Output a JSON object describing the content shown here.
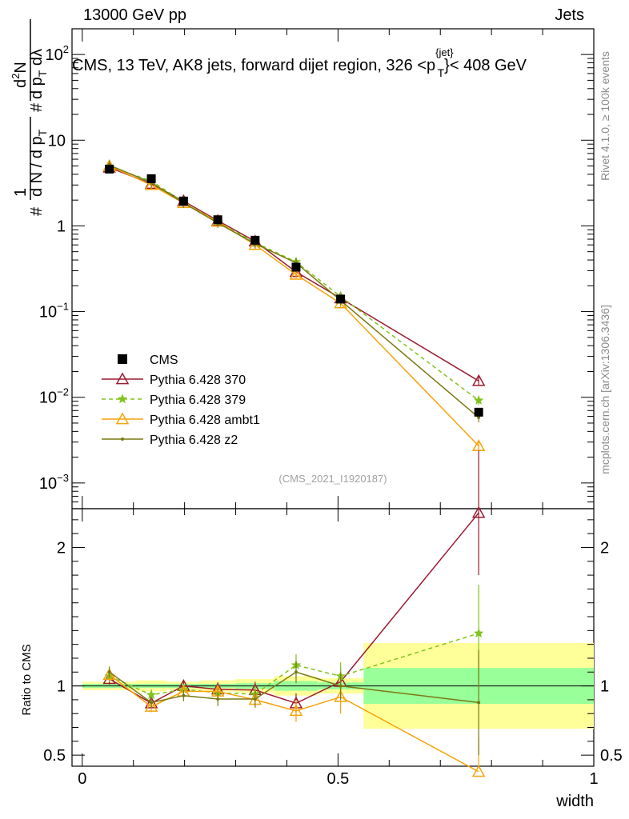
{
  "header": {
    "left": "13000 GeV pp",
    "right": "Jets"
  },
  "side_labels": {
    "rivet": "Rivet 4.1.0, ≥ 100k events",
    "mcplots": "mcplots.cern.ch [arXiv:1306.3436]"
  },
  "chart_data": {
    "type": "line",
    "title": "CMS, 13 TeV, AK8 jets, forward dijet region, 326 <p_T^{jet}< 408 GeV",
    "title_parts": {
      "main": "CMS, 13 TeV, AK8 jets, forward dijet region, 326 <p",
      "sup": "{jet}",
      "sub": "T",
      "tail": "}< 408 GeV"
    },
    "analysis_id": "(CMS_2021_I1920187)",
    "xlabel": "width",
    "ylabel_top": {
      "hash1": "#",
      "one": "1",
      "dNdpT": "d N / d p",
      "T1": "T",
      "hash2": "#",
      "d2N": "d",
      "d2N_sup": "2",
      "d2N_N": "N",
      "dpTdl": "d p",
      "T2": "T",
      "dl": " dλ"
    },
    "ylabel_bottom": "Ratio to CMS",
    "xlim": [
      -0.02,
      1.0
    ],
    "top_ylim_log10": [
      -3.3,
      2.3
    ],
    "ratio_ylim": [
      0.42,
      2.28
    ],
    "x_ticks": [
      {
        "v": 0,
        "label": "0"
      },
      {
        "v": 0.5,
        "label": "0.5"
      },
      {
        "v": 1,
        "label": "1"
      }
    ],
    "top_y_ticks": [
      {
        "e": -3,
        "label": "10",
        "sup": "−3"
      },
      {
        "e": -2,
        "label": "10",
        "sup": "−2"
      },
      {
        "e": -1,
        "label": "10",
        "sup": "−1"
      },
      {
        "e": 0,
        "label": "1",
        "sup": ""
      },
      {
        "e": 1,
        "label": "10",
        "sup": ""
      },
      {
        "e": 2,
        "label": "10",
        "sup": "2"
      }
    ],
    "ratio_y_ticks": [
      {
        "v": 0.5,
        "label": "0.5"
      },
      {
        "v": 1,
        "label": "1"
      },
      {
        "v": 2,
        "label": "2"
      }
    ],
    "bins": [
      {
        "lo": 0.0,
        "hi": 0.105
      },
      {
        "lo": 0.105,
        "hi": 0.165
      },
      {
        "lo": 0.165,
        "hi": 0.23
      },
      {
        "lo": 0.23,
        "hi": 0.3
      },
      {
        "lo": 0.3,
        "hi": 0.375
      },
      {
        "lo": 0.375,
        "hi": 0.46
      },
      {
        "lo": 0.46,
        "hi": 0.55
      },
      {
        "lo": 0.55,
        "hi": 1.0
      }
    ],
    "data": {
      "name": "CMS",
      "x": [
        0.053,
        0.135,
        0.198,
        0.265,
        0.338,
        0.418,
        0.505,
        0.775
      ],
      "y": [
        4.6,
        3.55,
        1.95,
        1.18,
        0.68,
        0.33,
        0.14,
        0.0067
      ],
      "band_green": [
        0.015,
        0.015,
        0.015,
        0.015,
        0.02,
        0.035,
        0.025,
        0.13
      ],
      "band_yellow": [
        0.03,
        0.04,
        0.03,
        0.04,
        0.05,
        0.07,
        0.055,
        0.31
      ]
    },
    "series": [
      {
        "name": "Pythia 6.428 370",
        "color": "#9b1b30",
        "dash": "",
        "marker": "triangle-open",
        "values": [
          4.8,
          3.1,
          1.95,
          1.15,
          0.66,
          0.29,
          0.143,
          0.0155
        ],
        "ratio": [
          1.05,
          0.875,
          1.0,
          0.975,
          0.97,
          0.875,
          1.03,
          2.25
        ],
        "ratio_err": [
          0.04,
          0.04,
          0.04,
          0.05,
          0.06,
          0.07,
          0.1,
          0.45
        ]
      },
      {
        "name": "Pythia 6.428 379",
        "color": "#7fc31c",
        "dash": "5,4",
        "marker": "star",
        "values": [
          4.9,
          3.35,
          1.9,
          1.12,
          0.64,
          0.38,
          0.15,
          0.0092
        ],
        "ratio": [
          1.07,
          0.935,
          0.975,
          0.95,
          0.94,
          1.15,
          1.07,
          1.38
        ],
        "ratio_err": [
          0.04,
          0.04,
          0.04,
          0.05,
          0.06,
          0.08,
          0.1,
          0.35
        ]
      },
      {
        "name": "Pythia 6.428 ambt1",
        "color": "#f5a30a",
        "dash": "",
        "marker": "triangle-open",
        "values": [
          5.0,
          3.0,
          1.85,
          1.12,
          0.6,
          0.27,
          0.125,
          0.0027
        ],
        "ratio": [
          1.08,
          0.85,
          0.96,
          0.96,
          0.9,
          0.82,
          0.92,
          0.38
        ],
        "ratio_err": [
          0.04,
          0.04,
          0.04,
          0.05,
          0.06,
          0.08,
          0.12,
          0.25
        ]
      },
      {
        "name": "Pythia 6.428 z2",
        "color": "#7a7a12",
        "dash": "",
        "marker": "dot",
        "values": [
          5.1,
          3.2,
          1.85,
          1.08,
          0.62,
          0.37,
          0.135,
          0.0058
        ],
        "ratio": [
          1.1,
          0.88,
          0.93,
          0.905,
          0.905,
          1.1,
          1.0,
          0.88
        ],
        "ratio_err": [
          0.04,
          0.04,
          0.04,
          0.05,
          0.06,
          0.08,
          0.1,
          0.38
        ]
      }
    ],
    "legend": [
      "CMS",
      "Pythia 6.428 370",
      "Pythia 6.428 379",
      "Pythia 6.428 ambt1",
      "Pythia 6.428 z2"
    ]
  }
}
